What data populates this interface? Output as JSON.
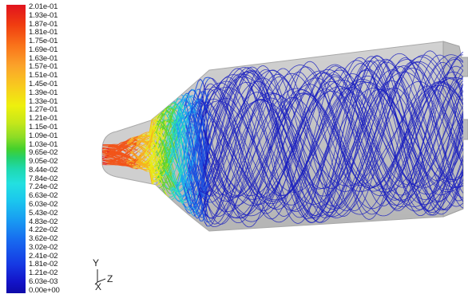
{
  "colorbar": {
    "labels": [
      "2.01e-01",
      "1.93e-01",
      "1.87e-01",
      "1.81e-01",
      "1.75e-01",
      "1.69e-01",
      "1.63e-01",
      "1.57e-01",
      "1.51e-01",
      "1.45e-01",
      "1.39e-01",
      "1.33e-01",
      "1.27e-01",
      "1.21e-01",
      "1.15e-01",
      "1.09e-01",
      "1.03e-01",
      "9.65e-02",
      "9.05e-02",
      "8.44e-02",
      "7.84e-02",
      "7.24e-02",
      "6.63e-02",
      "6.03e-02",
      "5.43e-02",
      "4.83e-02",
      "4.22e-02",
      "3.62e-02",
      "3.02e-02",
      "2.41e-02",
      "1.81e-02",
      "1.21e-02",
      "6.03e-03",
      "0.00e+00"
    ]
  },
  "axes": {
    "y_label": "Y",
    "x_label": "X",
    "z_label": "Z"
  }
}
